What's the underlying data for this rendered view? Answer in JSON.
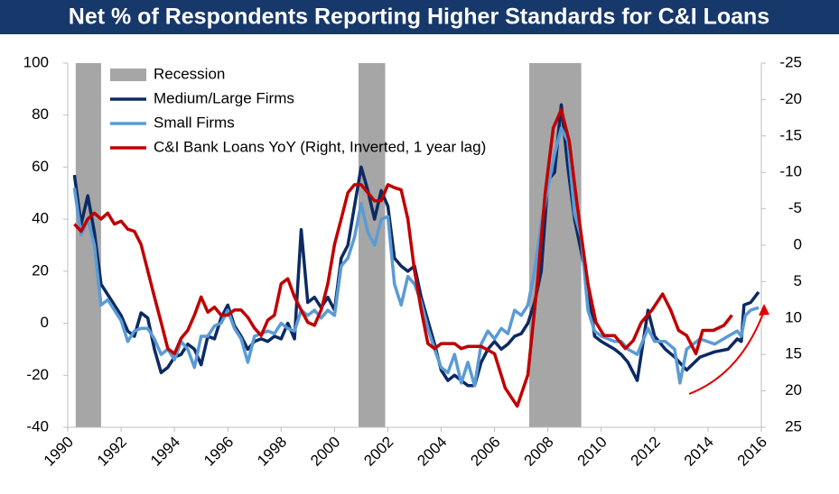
{
  "chart_data": {
    "type": "line",
    "title": "Net % of Respondents Reporting Higher Standards for C&I Loans",
    "xlim": [
      1990,
      2016
    ],
    "xticks": [
      1990,
      1992,
      1994,
      1996,
      1998,
      2000,
      2002,
      2004,
      2006,
      2008,
      2010,
      2012,
      2014,
      2016
    ],
    "ylim": [
      -40,
      100
    ],
    "yticks": [
      -40,
      -20,
      0,
      20,
      40,
      60,
      80,
      100
    ],
    "y2lim": [
      25,
      -25
    ],
    "y2ticks": [
      -25,
      -20,
      -15,
      -10,
      -5,
      0,
      5,
      10,
      15,
      20,
      25
    ],
    "recessions": {
      "name": "Recession",
      "color": "#a6a6a6",
      "spans": [
        [
          1990.3,
          1991.25
        ],
        [
          2000.9,
          2001.9
        ],
        [
          2007.3,
          2009.25
        ]
      ]
    },
    "series": [
      {
        "name": "Medium/Large Firms",
        "color": "#0c2a63",
        "x": [
          1990.25,
          1990.5,
          1990.75,
          1991,
          1991.25,
          1991.5,
          1991.75,
          1992,
          1992.25,
          1992.5,
          1992.75,
          1993,
          1993.25,
          1993.5,
          1993.75,
          1994,
          1994.25,
          1994.5,
          1994.75,
          1995,
          1995.25,
          1995.5,
          1995.75,
          1996,
          1996.25,
          1996.5,
          1996.75,
          1997,
          1997.25,
          1997.5,
          1997.75,
          1998,
          1998.25,
          1998.5,
          1998.75,
          1999,
          1999.25,
          1999.5,
          1999.75,
          2000,
          2000.25,
          2000.5,
          2000.75,
          2001,
          2001.25,
          2001.5,
          2001.75,
          2002,
          2002.25,
          2002.5,
          2002.75,
          2003,
          2003.25,
          2003.5,
          2003.75,
          2004,
          2004.25,
          2004.5,
          2004.75,
          2005,
          2005.25,
          2005.5,
          2005.75,
          2006,
          2006.25,
          2006.5,
          2006.75,
          2007,
          2007.25,
          2007.5,
          2007.75,
          2008,
          2008.25,
          2008.5,
          2008.75,
          2009,
          2009.5,
          2009.75,
          2010,
          2010.5,
          2010.75,
          2011,
          2011.35,
          2011.75,
          2012,
          2012.4,
          2012.75,
          2013.2,
          2013.7,
          2014.25,
          2014.75,
          2015.1,
          2015.25,
          2015.35,
          2015.6,
          2015.9
        ],
        "values": [
          57,
          38,
          49,
          35,
          15,
          11,
          7,
          3,
          -3,
          -5,
          4,
          2,
          -10,
          -19,
          -17,
          -13,
          -12,
          -8,
          -10,
          -16,
          -5,
          -6,
          2,
          7,
          -1,
          -5,
          -10,
          -7,
          -6,
          -7,
          -5,
          -6,
          0,
          -6,
          36,
          8,
          10,
          6,
          10,
          5,
          25,
          30,
          45,
          60,
          51,
          40,
          51,
          45,
          25,
          22,
          20,
          22,
          10,
          1,
          -8,
          -18,
          -22,
          -20,
          -22,
          -24,
          -24,
          -15,
          -10,
          -7,
          -10,
          -8,
          -5,
          -4,
          0,
          8,
          20,
          55,
          58,
          84,
          60,
          40,
          15,
          -5,
          -7,
          -10,
          -12,
          -15,
          -22,
          5,
          -5,
          -10,
          -13,
          -18,
          -13,
          -11,
          -10,
          -6,
          -7,
          7,
          8,
          12
        ]
      },
      {
        "name": "Small Firms",
        "color": "#5b9bd5",
        "x": [
          1990.25,
          1990.5,
          1990.75,
          1991,
          1991.25,
          1991.5,
          1991.75,
          1992,
          1992.25,
          1992.5,
          1992.75,
          1993,
          1993.25,
          1993.5,
          1993.75,
          1994,
          1994.25,
          1994.5,
          1994.75,
          1995,
          1995.25,
          1995.5,
          1995.75,
          1996,
          1996.25,
          1996.5,
          1996.75,
          1997,
          1997.25,
          1997.5,
          1997.75,
          1998,
          1998.25,
          1998.5,
          1998.75,
          1999,
          1999.25,
          1999.5,
          1999.75,
          2000,
          2000.25,
          2000.5,
          2000.75,
          2001,
          2001.25,
          2001.5,
          2001.75,
          2002,
          2002.25,
          2002.5,
          2002.75,
          2003,
          2003.25,
          2003.5,
          2003.75,
          2004,
          2004.25,
          2004.5,
          2004.75,
          2005,
          2005.25,
          2005.5,
          2005.75,
          2006,
          2006.25,
          2006.5,
          2006.75,
          2007,
          2007.25,
          2007.5,
          2007.75,
          2008,
          2008.25,
          2008.5,
          2008.75,
          2009,
          2009.25,
          2009.5,
          2009.75,
          2010,
          2010.5,
          2010.75,
          2011,
          2011.35,
          2011.75,
          2012,
          2012.4,
          2012.75,
          2012.95,
          2013.2,
          2013.7,
          2014.25,
          2014.75,
          2015.1,
          2015.25,
          2015.4,
          2015.6,
          2015.9
        ],
        "values": [
          52,
          34,
          40,
          30,
          7,
          9,
          5,
          1,
          -7,
          -3,
          -2,
          -2,
          -6,
          -12,
          -10,
          -14,
          -7,
          -10,
          -17,
          -5,
          -5,
          -1,
          0,
          5,
          -2,
          -6,
          -15,
          -5,
          -4,
          -3,
          -4,
          0,
          -2,
          -3,
          5,
          3,
          5,
          2,
          5,
          3,
          22,
          25,
          33,
          46,
          35,
          30,
          40,
          41,
          15,
          7,
          18,
          15,
          8,
          -2,
          -10,
          -17,
          -19,
          -12,
          -23,
          -15,
          -24,
          -8,
          -3,
          -6,
          -2,
          -4,
          5,
          3,
          7,
          20,
          38,
          52,
          65,
          75,
          70,
          42,
          33,
          5,
          -3,
          -5,
          -7,
          -7,
          -10,
          -12,
          -2,
          -7,
          -7,
          -10,
          -23,
          -10,
          -6,
          -8,
          -5,
          -3,
          -5,
          3,
          5,
          6
        ]
      },
      {
        "name": "C&I Bank Loans YoY (Right, Inverted, 1 year lag)",
        "color": "#c00000",
        "axis": "y2",
        "x": [
          1990.25,
          1990.5,
          1990.75,
          1991,
          1991.25,
          1991.5,
          1991.75,
          1992,
          1992.25,
          1992.5,
          1992.75,
          1993,
          1993.25,
          1993.5,
          1993.75,
          1994,
          1994.25,
          1994.5,
          1994.75,
          1995,
          1995.25,
          1995.5,
          1995.75,
          1996,
          1996.25,
          1996.5,
          1996.75,
          1997,
          1997.25,
          1997.5,
          1997.75,
          1998,
          1998.25,
          1998.5,
          1998.75,
          1999,
          1999.25,
          1999.5,
          1999.75,
          2000,
          2000.25,
          2000.5,
          2000.75,
          2001,
          2001.25,
          2001.5,
          2001.75,
          2002,
          2002.25,
          2002.5,
          2002.75,
          2003,
          2003.25,
          2003.5,
          2003.75,
          2004,
          2004.5,
          2004.75,
          2005,
          2005.5,
          2006,
          2006.4,
          2006.85,
          2007.25,
          2007.6,
          2007.9,
          2008.2,
          2008.5,
          2008.8,
          2009.1,
          2009.5,
          2009.8,
          2010.1,
          2010.5,
          2010.9,
          2011.2,
          2011.5,
          2011.9,
          2012.3,
          2012.6,
          2012.9,
          2013.2,
          2013.55,
          2013.8,
          2014.2,
          2014.6,
          2014.9
        ],
        "values": [
          -2.9,
          -1.9,
          -3.6,
          -4.4,
          -3.6,
          -4.4,
          -2.9,
          -3.3,
          -2.2,
          -1.9,
          -0.1,
          3.5,
          7.1,
          10.6,
          14.2,
          14.9,
          12.8,
          11.7,
          9.6,
          7.1,
          9.2,
          8.5,
          9.6,
          9.6,
          8.9,
          8.9,
          9.9,
          11.4,
          12.4,
          10.3,
          9.6,
          5.3,
          4.6,
          7.1,
          8.9,
          10.6,
          11,
          8.9,
          5.3,
          -0.1,
          -3.6,
          -7.2,
          -8.3,
          -8.3,
          -7.2,
          -6.1,
          -6.1,
          -8.3,
          -7.9,
          -7.6,
          -3.6,
          3.5,
          8.9,
          13.5,
          14.2,
          13.5,
          13.5,
          14.2,
          13.9,
          13.9,
          14.9,
          19.6,
          22.1,
          17.8,
          5.3,
          -7.2,
          -16.1,
          -18.6,
          -14.3,
          -5.4,
          5.3,
          10.6,
          12.4,
          12.4,
          14.2,
          13.1,
          10.6,
          8.9,
          6.7,
          8.9,
          11.7,
          12.4,
          14.9,
          11.7,
          11.7,
          11,
          9.6
        ]
      }
    ]
  }
}
